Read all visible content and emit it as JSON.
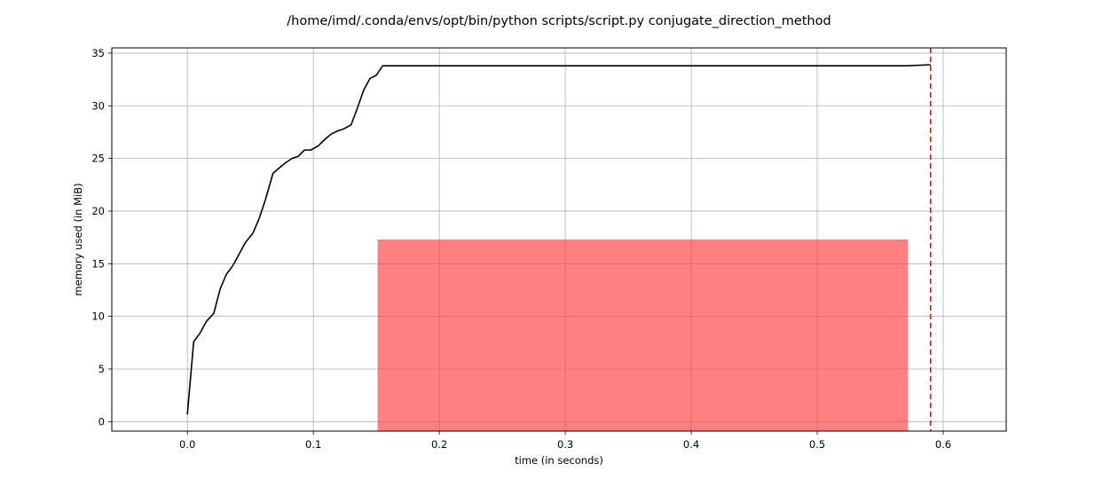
{
  "chart_data": {
    "type": "line",
    "title": "/home/imd/.conda/envs/opt/bin/python scripts/script.py conjugate_direction_method",
    "xlabel": "time (in seconds)",
    "ylabel": "memory used (in MiB)",
    "xlim": [
      -0.06,
      0.65
    ],
    "ylim": [
      -0.9,
      35.5
    ],
    "xticks": [
      0.0,
      0.1,
      0.2,
      0.3,
      0.4,
      0.5,
      0.6
    ],
    "xtick_labels": [
      "0.0",
      "0.1",
      "0.2",
      "0.3",
      "0.4",
      "0.5",
      "0.6"
    ],
    "yticks": [
      0,
      5,
      10,
      15,
      20,
      25,
      30,
      35
    ],
    "ytick_labels": [
      "0",
      "5",
      "10",
      "15",
      "20",
      "25",
      "30",
      "35"
    ],
    "grid": true,
    "series": [
      {
        "color": "#000000",
        "x": [
          0.0,
          0.005,
          0.01,
          0.015,
          0.021,
          0.026,
          0.031,
          0.036,
          0.041,
          0.046,
          0.052,
          0.057,
          0.062,
          0.068,
          0.073,
          0.078,
          0.083,
          0.088,
          0.093,
          0.098,
          0.104,
          0.109,
          0.114,
          0.119,
          0.124,
          0.13,
          0.135,
          0.14,
          0.145,
          0.15,
          0.155,
          0.57,
          0.59
        ],
        "y": [
          0.7,
          7.6,
          8.4,
          9.5,
          10.3,
          12.6,
          14.0,
          14.8,
          15.9,
          17.0,
          17.9,
          19.3,
          21.1,
          23.6,
          24.1,
          24.6,
          25.0,
          25.2,
          25.8,
          25.8,
          26.2,
          26.8,
          27.3,
          27.6,
          27.8,
          28.2,
          29.8,
          31.5,
          32.6,
          32.9,
          33.8,
          33.8,
          33.9
        ]
      }
    ],
    "highlight_box": {
      "x_start": 0.151,
      "x_end": 0.572,
      "y_start": -0.9,
      "y_end": 17.3,
      "color": "#ff8080"
    },
    "vline": {
      "x": 0.59,
      "color": "#c41e1e",
      "style": "dashed"
    }
  }
}
